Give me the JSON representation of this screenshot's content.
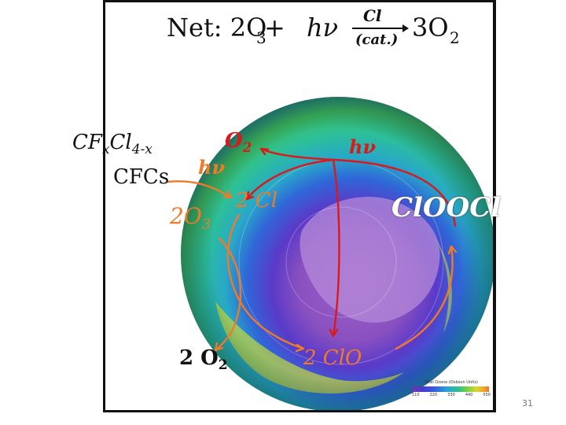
{
  "equation": {
    "prefix": "Net: 2O",
    "sub1": "3",
    "plus": " + ",
    "hv": "hν",
    "catalyst_top": "Cl",
    "catalyst_bottom": "(cat.)",
    "product": "3O",
    "sub2": "2"
  },
  "labels": {
    "cfxcl_main": "CF",
    "cfxcl_sub1": "x",
    "cfxcl_mid": "Cl",
    "cfxcl_sub2": "4-x",
    "cfcs": "CFCs",
    "hv_orange": "hν",
    "two_o3_main": "2O",
    "two_o3_sub": "3",
    "o2_top_main": "O",
    "o2_top_sub": "2",
    "hv_red": "hν",
    "two_cl": "2 Cl",
    "clooCl": "ClOOCl",
    "two_o2_main": "2 O",
    "two_o2_sub": "2",
    "two_clo": "2 ClO"
  },
  "legend": {
    "title": "Total Ozone (Dobson Units)",
    "ticks": [
      "110",
      "220",
      "330",
      "440",
      "550"
    ]
  },
  "slide_number": "31",
  "colors": {
    "orange": "#ee7a2a",
    "red": "#d81a1a",
    "text": "#111111"
  }
}
